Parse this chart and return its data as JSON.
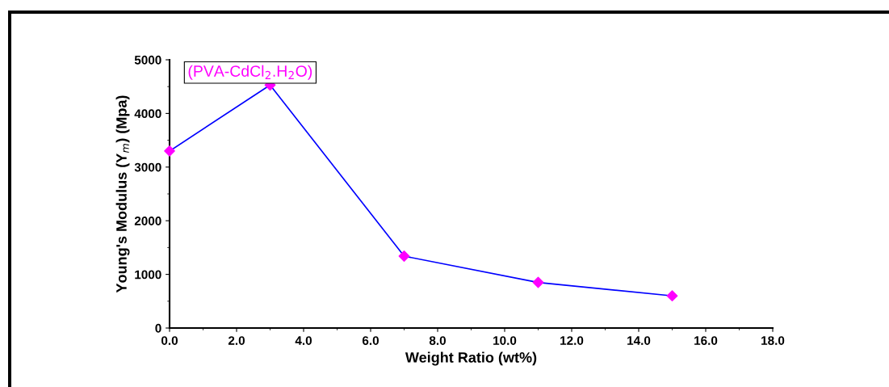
{
  "chart_data": {
    "type": "line",
    "xlabel": "Weight Ratio (wt%)",
    "ylabel": "Young's Modulus (Y$_{m}$) (Mpa)",
    "annotations": [
      "(PVA-CdCl$_{2}$.H$_{2}$O)"
    ],
    "x": [
      0,
      3,
      7,
      11,
      15
    ],
    "series": [
      {
        "color": "#0000ff",
        "colors": [
          "#ff00ff",
          "#ff00ff",
          "#ff00ff",
          "#ff00ff",
          "#ff00ff"
        ],
        "values": [
          3300,
          4530,
          1340,
          850,
          600
        ]
      }
    ],
    "marker": "diamond",
    "line_style": "solid",
    "xlim": [
      0,
      18
    ],
    "xticks": [
      {
        "value": 0,
        "label": "0.0"
      },
      {
        "value": 2,
        "label": "2.0"
      },
      {
        "value": 4,
        "label": "4.0"
      },
      {
        "value": 6,
        "label": "6.0"
      },
      {
        "value": 8,
        "label": "8.0"
      },
      {
        "value": 10,
        "label": "10.0"
      },
      {
        "value": 12,
        "label": "12.0"
      },
      {
        "value": 14,
        "label": "14.0"
      },
      {
        "value": 16,
        "label": "16.0"
      },
      {
        "value": 18,
        "label": "18.0"
      }
    ],
    "ylim": [
      0,
      5000
    ],
    "yticks": [
      0,
      1000,
      2000,
      3000,
      4000,
      5000
    ],
    "grid": false
  }
}
